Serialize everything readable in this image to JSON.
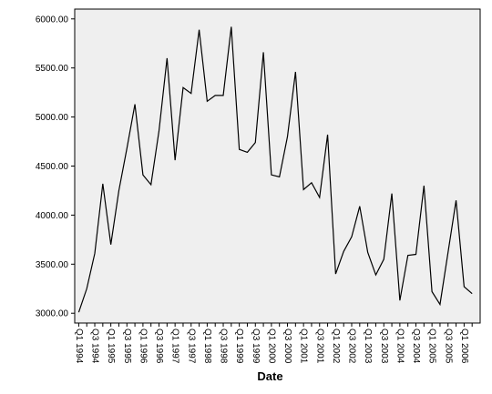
{
  "chart_data": {
    "type": "line",
    "title": "",
    "xlabel": "Date",
    "ylabel": "",
    "ylim": [
      2900,
      6100
    ],
    "yticks": [
      3000,
      3500,
      4000,
      4500,
      5000,
      5500,
      6000
    ],
    "ytick_labels": [
      "3000.00",
      "3500.00",
      "4000.00",
      "4500.00",
      "5000.00",
      "5500.00",
      "6000.00"
    ],
    "grid": false,
    "x": [
      "Q1 1994",
      "Q2 1994",
      "Q3 1994",
      "Q4 1994",
      "Q1 1995",
      "Q2 1995",
      "Q3 1995",
      "Q4 1995",
      "Q1 1996",
      "Q2 1996",
      "Q3 1996",
      "Q4 1996",
      "Q1 1997",
      "Q2 1997",
      "Q3 1997",
      "Q4 1997",
      "Q1 1998",
      "Q2 1998",
      "Q3 1998",
      "Q4 1998",
      "Q1 1999",
      "Q2 1999",
      "Q3 1999",
      "Q4 1999",
      "Q1 2000",
      "Q2 2000",
      "Q3 2000",
      "Q4 2000",
      "Q1 2001",
      "Q2 2001",
      "Q3 2001",
      "Q4 2001",
      "Q1 2002",
      "Q2 2002",
      "Q3 2002",
      "Q4 2002",
      "Q1 2003",
      "Q2 2003",
      "Q3 2003",
      "Q4 2003",
      "Q1 2004",
      "Q2 2004",
      "Q3 2004",
      "Q4 2004",
      "Q1 2005",
      "Q2 2005",
      "Q3 2005",
      "Q4 2005",
      "Q1 2006",
      "Q2 2006"
    ],
    "xtick_labels": [
      "Q1 1994",
      "Q3 1994",
      "Q1 1995",
      "Q3 1995",
      "Q1 1996",
      "Q3 1996",
      "Q1 1997",
      "Q3 1997",
      "Q1 1998",
      "Q3 1998",
      "Q1 1999",
      "Q3 1999",
      "Q1 2000",
      "Q3 2000",
      "Q1 2001",
      "Q3 2001",
      "Q1 2002",
      "Q3 2002",
      "Q1 2003",
      "Q3 2003",
      "Q1 2004",
      "Q3 2004",
      "Q1 2005",
      "Q3 2005",
      "Q1 2006"
    ],
    "series": [
      {
        "values": [
          3010,
          3250,
          3610,
          4320,
          3700,
          4250,
          4680,
          5130,
          4410,
          4310,
          4860,
          5600,
          4560,
          5300,
          5240,
          5890,
          5160,
          5220,
          5220,
          5920,
          4670,
          4640,
          4740,
          5660,
          4410,
          4390,
          4800,
          5460,
          4260,
          4330,
          4180,
          4820,
          3400,
          3630,
          3780,
          4090,
          3620,
          3390,
          3550,
          4220,
          3130,
          3590,
          3600,
          4300,
          3220,
          3090,
          3620,
          4150,
          3270,
          3200
        ]
      }
    ],
    "colors": {
      "plot_background": "#efefef",
      "line": "#000000",
      "frame": "#000000"
    }
  }
}
